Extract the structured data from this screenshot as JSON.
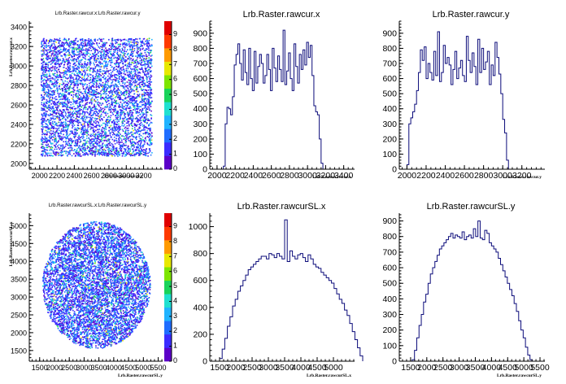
{
  "colors": {
    "histogram_line": "#0b0b7a",
    "palette": [
      "#5b00c8",
      "#3a2bff",
      "#1f6dff",
      "#1fb3ff",
      "#20e0d0",
      "#19d35a",
      "#7ee500",
      "#e8e800",
      "#ff9a00",
      "#ff3a00",
      "#e00000"
    ]
  },
  "chart_data": [
    {
      "id": "p1",
      "type": "heatmap",
      "title": "Lrb.Raster.rawcur.x:Lrb.Raster.rawcur.y",
      "xlabel": "Lrb.Raster.rawcur.y",
      "ylabel": "Lrb.Raster.rawcur.x",
      "x_ticks": [
        2000,
        2200,
        2400,
        2600,
        2800,
        3000,
        3200
      ],
      "y_ticks": [
        2000,
        2200,
        2400,
        2600,
        2800,
        3000,
        3200,
        3400
      ],
      "xlim": [
        1880,
        3420
      ],
      "ylim": [
        1940,
        3460
      ],
      "shape": "square",
      "region_x": [
        2010,
        3290
      ],
      "region_y": [
        2080,
        3290
      ],
      "z_ticks": [
        0,
        1,
        2,
        3,
        4,
        5,
        6,
        7,
        8,
        9
      ],
      "zlim": [
        0,
        9
      ]
    },
    {
      "id": "p2",
      "type": "bar",
      "title": "Lrb.Raster.rawcur.x",
      "xlabel": "Lrb.Raster.rawcur.x",
      "x_ticks": [
        2000,
        2200,
        2400,
        2600,
        2800,
        3000,
        3200,
        3400
      ],
      "y_ticks": [
        0,
        100,
        200,
        300,
        400,
        500,
        600,
        700,
        800,
        900
      ],
      "xlim": [
        1920,
        3520
      ],
      "ylim": [
        0,
        980
      ],
      "bin_start": 2070,
      "bin_width": 20,
      "values": [
        20,
        300,
        410,
        400,
        360,
        480,
        690,
        760,
        830,
        700,
        590,
        790,
        640,
        560,
        800,
        600,
        520,
        780,
        570,
        680,
        760,
        700,
        570,
        620,
        760,
        660,
        520,
        800,
        670,
        580,
        750,
        660,
        580,
        920,
        560,
        650,
        770,
        600,
        520,
        830,
        680,
        570,
        760,
        660,
        790,
        690,
        840,
        740,
        820,
        620,
        420,
        380,
        360,
        200,
        40
      ]
    },
    {
      "id": "p3",
      "type": "bar",
      "title": "Lrb.Raster.rawcur.y",
      "xlabel": "Lrb.Raster.rawcur.y",
      "x_ticks": [
        2000,
        2200,
        2400,
        2600,
        2800,
        3000,
        3200
      ],
      "y_ticks": [
        0,
        100,
        200,
        300,
        400,
        500,
        600,
        700,
        800,
        900
      ],
      "xlim": [
        1920,
        3440
      ],
      "ylim": [
        0,
        980
      ],
      "bin_start": 2000,
      "bin_width": 20,
      "values": [
        30,
        300,
        340,
        380,
        430,
        520,
        640,
        790,
        720,
        810,
        600,
        700,
        640,
        590,
        780,
        620,
        910,
        580,
        640,
        820,
        700,
        740,
        690,
        560,
        660,
        780,
        600,
        670,
        720,
        620,
        580,
        880,
        720,
        640,
        770,
        680,
        560,
        860,
        640,
        800,
        660,
        710,
        780,
        560,
        690,
        620,
        840,
        740,
        630,
        500,
        330,
        240,
        60
      ]
    },
    {
      "id": "p4",
      "type": "heatmap",
      "title": "Lrb.Raster.rawcurSL.x:Lrb.Raster.rawcurSL.y",
      "xlabel": "Lrb.Raster.rawcurSL.y",
      "ylabel": "Lrb.Raster.rawcurSL.x",
      "x_ticks": [
        1500,
        2000,
        2500,
        3000,
        3500,
        4000,
        4500,
        5000,
        5500
      ],
      "y_ticks": [
        1500,
        2000,
        2500,
        3000,
        3500,
        4000,
        4500,
        5000
      ],
      "xlim": [
        1150,
        5650
      ],
      "ylim": [
        1200,
        5350
      ],
      "shape": "circle",
      "center": [
        3400,
        3350
      ],
      "radius": [
        1820,
        1780
      ],
      "z_ticks": [
        0,
        1,
        2,
        3,
        4,
        5,
        6,
        7,
        8,
        9
      ],
      "zlim": [
        0,
        9
      ]
    },
    {
      "id": "p5",
      "type": "bar",
      "title": "Lrb.Raster.rawcurSL.x",
      "xlabel": "Lrb.Raster.rawcurSL.x",
      "x_ticks": [
        1500,
        2000,
        2500,
        3000,
        3500,
        4000,
        4500,
        5000
      ],
      "y_ticks": [
        0,
        200,
        400,
        600,
        800,
        1000
      ],
      "xlim": [
        1200,
        5650
      ],
      "ylim": [
        0,
        1100
      ],
      "bin_start": 1500,
      "bin_width": 80,
      "values": [
        20,
        90,
        170,
        260,
        330,
        410,
        460,
        520,
        560,
        600,
        640,
        680,
        700,
        720,
        740,
        760,
        780,
        780,
        760,
        800,
        790,
        770,
        800,
        780,
        760,
        1050,
        740,
        820,
        780,
        760,
        790,
        800,
        770,
        740,
        790,
        760,
        720,
        700,
        690,
        660,
        640,
        620,
        600,
        580,
        540,
        500,
        460,
        430,
        380,
        340,
        280,
        220,
        160,
        100,
        40
      ]
    },
    {
      "id": "p6",
      "type": "bar",
      "title": "Lrb.Raster.rawcurSL.y",
      "xlabel": "Lrb.Raster.rawcurSL.y",
      "x_ticks": [
        1500,
        2000,
        2500,
        3000,
        3500,
        4000,
        4500,
        5000,
        5500
      ],
      "y_ticks": [
        0,
        100,
        200,
        300,
        400,
        500,
        600,
        700,
        800,
        900
      ],
      "xlim": [
        1150,
        5650
      ],
      "ylim": [
        0,
        950
      ],
      "bin_start": 1550,
      "bin_width": 70,
      "values": [
        10,
        70,
        150,
        230,
        300,
        380,
        430,
        500,
        560,
        600,
        640,
        680,
        720,
        740,
        760,
        780,
        800,
        820,
        790,
        810,
        800,
        790,
        830,
        780,
        800,
        810,
        790,
        850,
        800,
        900,
        790,
        780,
        840,
        820,
        760,
        740,
        720,
        700,
        660,
        620,
        580,
        540,
        500,
        460,
        420,
        370,
        320,
        260,
        200,
        150,
        90,
        40,
        10
      ]
    }
  ]
}
